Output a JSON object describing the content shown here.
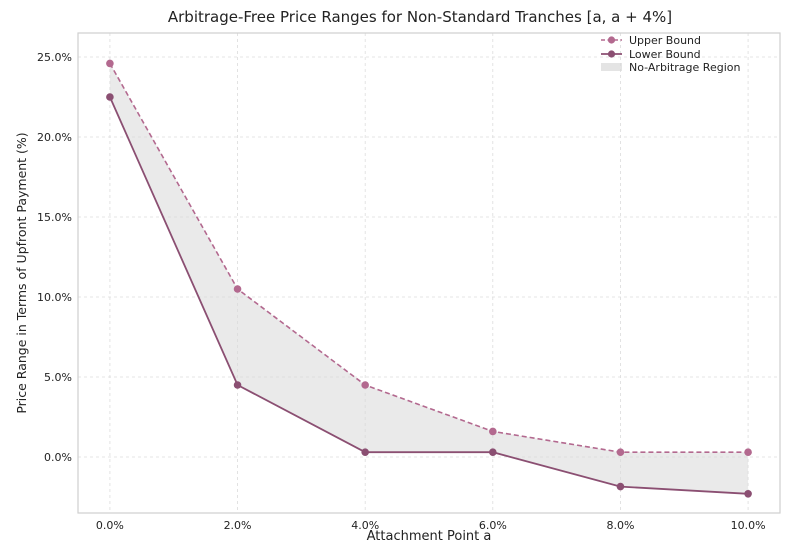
{
  "chart_data": {
    "type": "line",
    "title": "Arbitrage-Free Price Ranges for Non-Standard Tranches [a, a + 4%]",
    "xlabel": "Attachment Point a",
    "ylabel": "Price Range in Terms of Upfront Payment (%)",
    "x": [
      0,
      2,
      4,
      6,
      8,
      10
    ],
    "x_tick_labels": [
      "0.0%",
      "2.0%",
      "4.0%",
      "6.0%",
      "8.0%",
      "10.0%"
    ],
    "y_tick_values": [
      0,
      5,
      10,
      15,
      20,
      25
    ],
    "y_tick_labels": [
      "0.0%",
      "5.0%",
      "10.0%",
      "15.0%",
      "20.0%",
      "25.0%"
    ],
    "xlim": [
      -0.5,
      10.5
    ],
    "ylim": [
      -3.5,
      26.5
    ],
    "grid": true,
    "legend_position": "top-right",
    "series": [
      {
        "name": "Upper Bound",
        "values": [
          24.6,
          10.5,
          4.5,
          1.6,
          0.3,
          0.3
        ],
        "color": "#b3698f",
        "style": "dashed",
        "marker": "circle"
      },
      {
        "name": "Lower Bound",
        "values": [
          22.5,
          4.5,
          0.3,
          0.3,
          -1.85,
          -2.3
        ],
        "color": "#8b4f72",
        "style": "solid",
        "marker": "circle"
      }
    ],
    "fill_region": {
      "name": "No-Arbitrage Region",
      "color": "#d9d9d9"
    }
  }
}
